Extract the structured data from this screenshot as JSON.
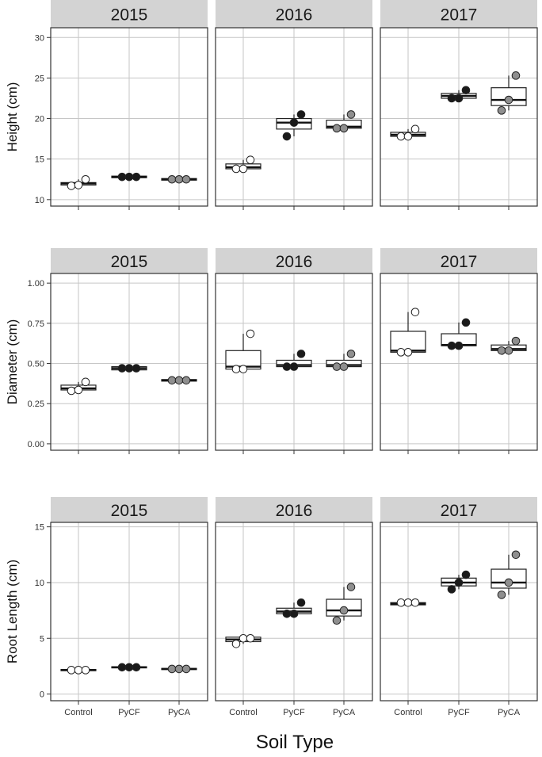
{
  "x_title": "Soil Type",
  "categories": [
    "Control",
    "PyCF",
    "PyCA"
  ],
  "colors": {
    "Control": "#ffffff",
    "PyCF": "#1a1a1a",
    "PyCA": "#8f8f8f",
    "strip": "#d3d3d3",
    "grid": "#c6c6c6",
    "frame": "#333333"
  },
  "chart_data": [
    {
      "type": "box",
      "ylabel": "Height (cm)",
      "ylim": [
        9.2,
        31.2
      ],
      "yticks": [
        10,
        15,
        20,
        25,
        30
      ],
      "tick_labels": [
        "10",
        "15",
        "20",
        "25",
        "30"
      ],
      "grid": true,
      "panels": [
        {
          "year": "2015",
          "boxes": [
            {
              "category": "Control",
              "q1": 11.8,
              "median": 12.0,
              "q3": 12.1,
              "whisker_low": 11.8,
              "whisker_high": 12.5,
              "points": [
                11.7,
                11.8,
                12.5
              ]
            },
            {
              "category": "PyCF",
              "q1": 12.7,
              "median": 12.8,
              "q3": 12.9,
              "whisker_low": 12.7,
              "whisker_high": 12.9,
              "points": [
                12.8,
                12.8,
                12.8
              ]
            },
            {
              "category": "PyCA",
              "q1": 12.4,
              "median": 12.5,
              "q3": 12.6,
              "whisker_low": 12.4,
              "whisker_high": 12.6,
              "points": [
                12.5,
                12.5,
                12.5
              ]
            }
          ]
        },
        {
          "year": "2016",
          "boxes": [
            {
              "category": "Control",
              "q1": 13.8,
              "median": 14.0,
              "q3": 14.4,
              "whisker_low": 13.8,
              "whisker_high": 14.9,
              "points": [
                13.8,
                13.8,
                14.9
              ]
            },
            {
              "category": "PyCF",
              "q1": 18.7,
              "median": 19.5,
              "q3": 20.0,
              "whisker_low": 17.8,
              "whisker_high": 20.5,
              "points": [
                17.8,
                19.5,
                20.5
              ]
            },
            {
              "category": "PyCA",
              "q1": 18.8,
              "median": 19.0,
              "q3": 19.8,
              "whisker_low": 18.8,
              "whisker_high": 20.5,
              "points": [
                18.8,
                18.8,
                20.5
              ]
            }
          ]
        },
        {
          "year": "2017",
          "boxes": [
            {
              "category": "Control",
              "q1": 17.8,
              "median": 18.0,
              "q3": 18.3,
              "whisker_low": 17.8,
              "whisker_high": 18.7,
              "points": [
                17.8,
                17.8,
                18.7
              ]
            },
            {
              "category": "PyCF",
              "q1": 22.5,
              "median": 22.8,
              "q3": 23.1,
              "whisker_low": 22.5,
              "whisker_high": 23.5,
              "points": [
                22.5,
                22.5,
                23.5
              ]
            },
            {
              "category": "PyCA",
              "q1": 21.6,
              "median": 22.3,
              "q3": 23.8,
              "whisker_low": 21.0,
              "whisker_high": 25.3,
              "points": [
                21.0,
                22.3,
                25.3
              ]
            }
          ]
        }
      ]
    },
    {
      "type": "box",
      "ylabel": "Diameter (cm)",
      "ylim": [
        -0.04,
        1.06
      ],
      "yticks": [
        0,
        0.25,
        0.5,
        0.75,
        1.0
      ],
      "tick_labels": [
        "0.00",
        "0.25",
        "0.50",
        "0.75",
        "1.00"
      ],
      "grid": true,
      "panels": [
        {
          "year": "2015",
          "boxes": [
            {
              "category": "Control",
              "q1": 0.335,
              "median": 0.345,
              "q3": 0.365,
              "whisker_low": 0.33,
              "whisker_high": 0.385,
              "points": [
                0.33,
                0.335,
                0.385
              ]
            },
            {
              "category": "PyCF",
              "q1": 0.46,
              "median": 0.47,
              "q3": 0.48,
              "whisker_low": 0.46,
              "whisker_high": 0.48,
              "points": [
                0.47,
                0.47,
                0.47
              ]
            },
            {
              "category": "PyCA",
              "q1": 0.39,
              "median": 0.395,
              "q3": 0.4,
              "whisker_low": 0.39,
              "whisker_high": 0.4,
              "points": [
                0.395,
                0.395,
                0.395
              ]
            }
          ]
        },
        {
          "year": "2016",
          "boxes": [
            {
              "category": "Control",
              "q1": 0.465,
              "median": 0.48,
              "q3": 0.58,
              "whisker_low": 0.465,
              "whisker_high": 0.685,
              "points": [
                0.465,
                0.465,
                0.685
              ]
            },
            {
              "category": "PyCF",
              "q1": 0.48,
              "median": 0.49,
              "q3": 0.52,
              "whisker_low": 0.48,
              "whisker_high": 0.56,
              "points": [
                0.48,
                0.48,
                0.56
              ]
            },
            {
              "category": "PyCA",
              "q1": 0.48,
              "median": 0.49,
              "q3": 0.52,
              "whisker_low": 0.48,
              "whisker_high": 0.56,
              "points": [
                0.48,
                0.48,
                0.56
              ]
            }
          ]
        },
        {
          "year": "2017",
          "boxes": [
            {
              "category": "Control",
              "q1": 0.57,
              "median": 0.58,
              "q3": 0.7,
              "whisker_low": 0.57,
              "whisker_high": 0.82,
              "points": [
                0.57,
                0.57,
                0.82
              ]
            },
            {
              "category": "PyCF",
              "q1": 0.61,
              "median": 0.615,
              "q3": 0.685,
              "whisker_low": 0.61,
              "whisker_high": 0.755,
              "points": [
                0.61,
                0.61,
                0.755
              ]
            },
            {
              "category": "PyCA",
              "q1": 0.58,
              "median": 0.59,
              "q3": 0.615,
              "whisker_low": 0.58,
              "whisker_high": 0.64,
              "points": [
                0.58,
                0.58,
                0.64
              ]
            }
          ]
        }
      ]
    },
    {
      "type": "box",
      "ylabel": "Root Length (cm)",
      "ylim": [
        -0.6,
        15.4
      ],
      "yticks": [
        0,
        5,
        10,
        15
      ],
      "tick_labels": [
        "0",
        "5",
        "10",
        "15"
      ],
      "grid": true,
      "panels": [
        {
          "year": "2015",
          "boxes": [
            {
              "category": "Control",
              "q1": 2.1,
              "median": 2.15,
              "q3": 2.2,
              "whisker_low": 2.1,
              "whisker_high": 2.2,
              "points": [
                2.15,
                2.15,
                2.15
              ]
            },
            {
              "category": "PyCF",
              "q1": 2.35,
              "median": 2.4,
              "q3": 2.45,
              "whisker_low": 2.35,
              "whisker_high": 2.45,
              "points": [
                2.4,
                2.4,
                2.4
              ]
            },
            {
              "category": "PyCA",
              "q1": 2.2,
              "median": 2.25,
              "q3": 2.3,
              "whisker_low": 2.2,
              "whisker_high": 2.3,
              "points": [
                2.25,
                2.25,
                2.25
              ]
            }
          ]
        },
        {
          "year": "2016",
          "boxes": [
            {
              "category": "Control",
              "q1": 4.7,
              "median": 4.9,
              "q3": 5.1,
              "whisker_low": 4.5,
              "whisker_high": 5.1,
              "points": [
                4.5,
                5.0,
                5.0
              ]
            },
            {
              "category": "PyCF",
              "q1": 7.2,
              "median": 7.4,
              "q3": 7.7,
              "whisker_low": 7.2,
              "whisker_high": 8.2,
              "points": [
                7.2,
                7.2,
                8.2
              ]
            },
            {
              "category": "PyCA",
              "q1": 7.0,
              "median": 7.5,
              "q3": 8.5,
              "whisker_low": 6.6,
              "whisker_high": 9.6,
              "points": [
                6.6,
                7.5,
                9.6
              ]
            }
          ]
        },
        {
          "year": "2017",
          "boxes": [
            {
              "category": "Control",
              "q1": 8.0,
              "median": 8.1,
              "q3": 8.2,
              "whisker_low": 8.0,
              "whisker_high": 8.2,
              "points": [
                8.2,
                8.2,
                8.2
              ]
            },
            {
              "category": "PyCF",
              "q1": 9.7,
              "median": 10.0,
              "q3": 10.4,
              "whisker_low": 9.4,
              "whisker_high": 10.7,
              "points": [
                9.4,
                10.0,
                10.7
              ]
            },
            {
              "category": "PyCA",
              "q1": 9.5,
              "median": 10.0,
              "q3": 11.2,
              "whisker_low": 8.9,
              "whisker_high": 12.5,
              "points": [
                8.9,
                10.0,
                12.5
              ]
            }
          ]
        }
      ]
    }
  ]
}
